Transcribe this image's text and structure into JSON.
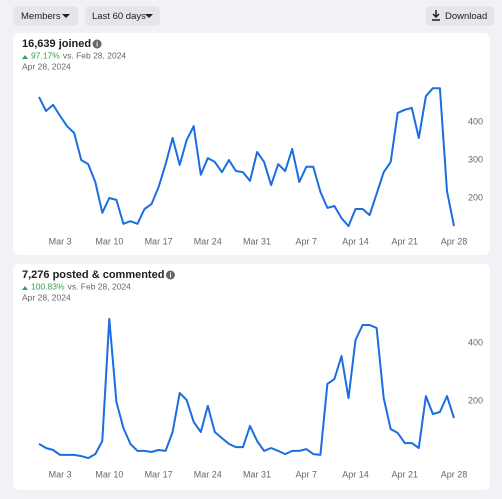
{
  "toolbar": {
    "filters": [
      "Members",
      "Last 60 days"
    ],
    "download": "Download"
  },
  "chart_data": [
    {
      "type": "line",
      "title": "16,639 joined",
      "change": "97.17%",
      "comparison": "vs. Feb 28, 2024",
      "date": "Apr 28, 2024",
      "color": "#1b6ee0",
      "ylim": [
        100,
        500
      ],
      "yticks": [
        200,
        300,
        400
      ],
      "categories": [
        null,
        null,
        null,
        "Mar 3",
        null,
        null,
        null,
        null,
        null,
        null,
        "Mar 10",
        null,
        null,
        null,
        null,
        null,
        null,
        "Mar 17",
        null,
        null,
        null,
        null,
        null,
        null,
        "Mar 24",
        null,
        null,
        null,
        null,
        null,
        null,
        "Mar 31",
        null,
        null,
        null,
        null,
        null,
        null,
        "Apr 7",
        null,
        null,
        null,
        null,
        null,
        null,
        "Apr 14",
        null,
        null,
        null,
        null,
        null,
        null,
        "Apr 21",
        null,
        null,
        null,
        null,
        null,
        null,
        "Apr 28"
      ],
      "values": [
        466,
        429,
        445,
        416,
        389,
        371,
        300,
        289,
        242,
        161,
        200,
        195,
        132,
        139,
        132,
        171,
        184,
        229,
        289,
        358,
        287,
        353,
        389,
        261,
        305,
        295,
        268,
        300,
        271,
        268,
        245,
        321,
        295,
        234,
        289,
        271,
        329,
        242,
        282,
        282,
        216,
        174,
        179,
        147,
        126,
        171,
        171,
        155,
        211,
        268,
        295,
        424,
        432,
        437,
        358,
        468,
        489,
        489,
        218,
        126
      ]
    },
    {
      "type": "line",
      "title": "7,276 posted & commented",
      "change": "100.83%",
      "comparison": "vs. Feb 28, 2024",
      "date": "Apr 28, 2024",
      "color": "#1b6ee0",
      "ylim": [
        0,
        500
      ],
      "yticks": [
        200,
        400
      ],
      "categories": [
        null,
        null,
        null,
        "Mar 3",
        null,
        null,
        null,
        null,
        null,
        null,
        "Mar 10",
        null,
        null,
        null,
        null,
        null,
        null,
        "Mar 17",
        null,
        null,
        null,
        null,
        null,
        null,
        "Mar 24",
        null,
        null,
        null,
        null,
        null,
        null,
        "Mar 31",
        null,
        null,
        null,
        null,
        null,
        null,
        "Apr 7",
        null,
        null,
        null,
        null,
        null,
        null,
        "Apr 14",
        null,
        null,
        null,
        null,
        null,
        null,
        "Apr 21",
        null,
        null,
        null,
        null,
        null,
        null,
        "Apr 28"
      ],
      "values": [
        52,
        38,
        31,
        14,
        14,
        14,
        10,
        3,
        17,
        62,
        483,
        197,
        107,
        52,
        28,
        28,
        24,
        31,
        28,
        93,
        228,
        203,
        128,
        93,
        183,
        93,
        72,
        52,
        41,
        41,
        114,
        62,
        28,
        38,
        28,
        17,
        28,
        28,
        34,
        17,
        14,
        259,
        276,
        355,
        210,
        410,
        462,
        462,
        452,
        210,
        103,
        90,
        55,
        55,
        38,
        217,
        155,
        162,
        217,
        141
      ]
    }
  ]
}
